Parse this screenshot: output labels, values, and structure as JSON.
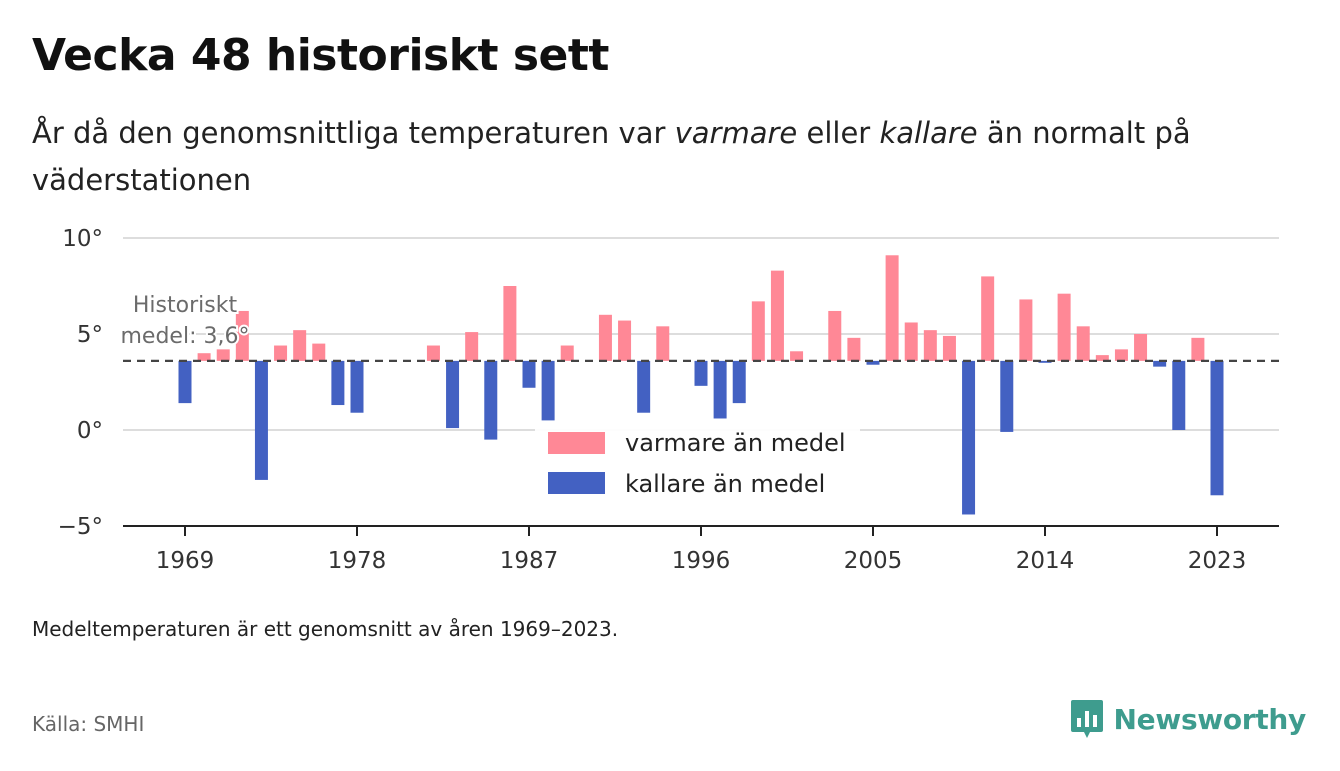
{
  "header": {
    "title": "Vecka 48 historiskt sett",
    "subtitle_pre": "År då den genomsnittliga temperaturen var ",
    "subtitle_warm": "varmare",
    "subtitle_mid": " eller ",
    "subtitle_cold": "kallare",
    "subtitle_post": " än normalt på väderstationen"
  },
  "footer": {
    "note": "Medeltemperaturen är ett genomsnitt av åren 1969–2023.",
    "source": "Källa: SMHI",
    "brand": "Newsworthy"
  },
  "colors": {
    "warm": "#ff8896",
    "cold": "#4361c2",
    "brand": "#3e9c8e",
    "grid": "#dddddd"
  },
  "chart_data": {
    "type": "bar",
    "baseline": 3.6,
    "baseline_label_line1": "Historiskt",
    "baseline_label_line2": "medel: 3,6°",
    "ylim": [
      -5,
      10
    ],
    "yticks": [
      10,
      5,
      0,
      -5
    ],
    "ytick_labels": [
      "10°",
      "5°",
      "0°",
      "−5°"
    ],
    "xticks": [
      1969,
      1978,
      1987,
      1996,
      2005,
      2014,
      2023
    ],
    "xtick_labels": [
      "1969",
      "1978",
      "1987",
      "1996",
      "2005",
      "2014",
      "2023"
    ],
    "legend": {
      "warm": "varmare än medel",
      "cold": "kallare än medel"
    },
    "x": [
      1969,
      1970,
      1971,
      1972,
      1973,
      1974,
      1975,
      1976,
      1977,
      1978,
      1979,
      1980,
      1981,
      1982,
      1983,
      1984,
      1985,
      1986,
      1987,
      1988,
      1989,
      1990,
      1991,
      1992,
      1993,
      1994,
      1995,
      1996,
      1997,
      1998,
      1999,
      2000,
      2001,
      2002,
      2003,
      2004,
      2005,
      2006,
      2007,
      2008,
      2009,
      2010,
      2011,
      2012,
      2013,
      2014,
      2015,
      2016,
      2017,
      2018,
      2019,
      2020,
      2021,
      2022,
      2023
    ],
    "values": [
      1.4,
      4.0,
      4.2,
      6.2,
      -2.6,
      4.4,
      5.2,
      4.5,
      1.3,
      0.9,
      null,
      null,
      null,
      4.4,
      0.1,
      5.1,
      -0.5,
      7.5,
      2.2,
      0.5,
      4.4,
      null,
      6.0,
      5.7,
      0.9,
      5.4,
      null,
      2.3,
      0.6,
      1.4,
      6.7,
      8.3,
      4.1,
      null,
      6.2,
      4.8,
      3.4,
      9.1,
      5.6,
      5.2,
      4.9,
      -4.4,
      8.0,
      -0.1,
      6.8,
      3.5,
      7.1,
      5.4,
      3.9,
      4.2,
      5.0,
      3.3,
      0.0,
      4.8,
      -3.4
    ]
  }
}
